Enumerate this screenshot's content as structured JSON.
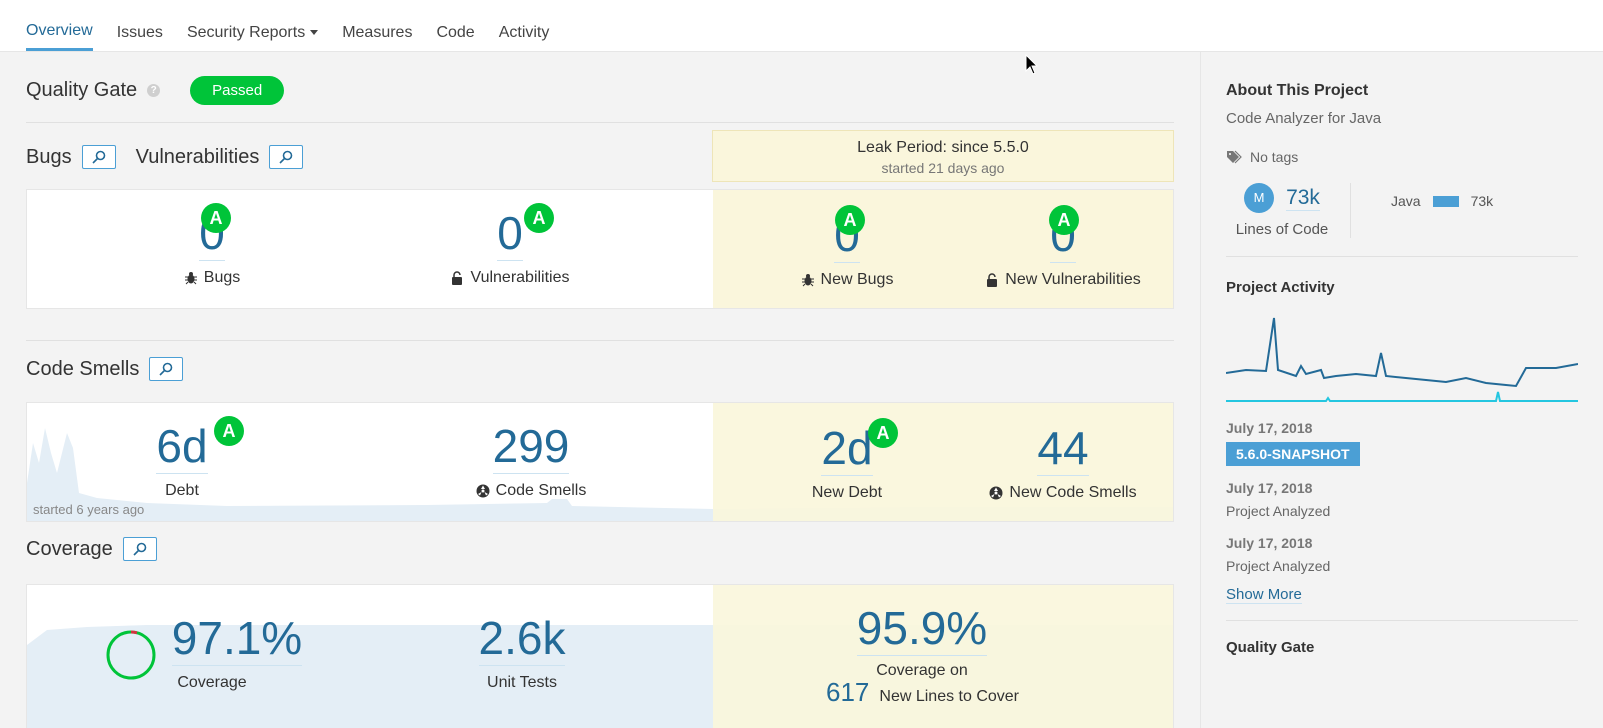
{
  "nav": {
    "tabs": [
      "Overview",
      "Issues",
      "Security Reports",
      "Measures",
      "Code",
      "Activity"
    ],
    "active": "Overview"
  },
  "quality_gate": {
    "title": "Quality Gate",
    "status": "Passed",
    "help": "?"
  },
  "sections": {
    "bugs_title": "Bugs",
    "vulns_title": "Vulnerabilities",
    "code_smells_title": "Code Smells",
    "coverage_title": "Coverage"
  },
  "leak_period": {
    "title": "Leak Period: since 5.5.0",
    "started": "started 21 days ago"
  },
  "bugs_vulns": {
    "bugs": {
      "value": "0",
      "label": "Bugs",
      "rating": "A"
    },
    "vulnerabilities": {
      "value": "0",
      "label": "Vulnerabilities",
      "rating": "A"
    },
    "new_bugs": {
      "value": "0",
      "label": "New Bugs",
      "rating": "A"
    },
    "new_vulnerabilities": {
      "value": "0",
      "label": "New Vulnerabilities",
      "rating": "A"
    }
  },
  "code_smells": {
    "debt": {
      "value": "6d",
      "label": "Debt",
      "rating": "A"
    },
    "code_smells": {
      "value": "299",
      "label": "Code Smells"
    },
    "new_debt": {
      "value": "2d",
      "label": "New Debt",
      "rating": "A"
    },
    "new_code_smells": {
      "value": "44",
      "label": "New Code Smells"
    },
    "history_note": "started 6 years ago"
  },
  "coverage": {
    "coverage": {
      "value": "97.1%",
      "label": "Coverage"
    },
    "unit_tests": {
      "value": "2.6k",
      "label": "Unit Tests"
    },
    "new_coverage": {
      "value": "95.9%",
      "label": "Coverage on"
    },
    "new_lines": {
      "value": "617",
      "label": "New Lines to Cover"
    }
  },
  "sidebar": {
    "about_title": "About This Project",
    "description": "Code Analyzer for Java",
    "tags": "No tags",
    "loc_avatar": "M",
    "loc_value": "73k",
    "loc_label": "Lines of Code",
    "language": {
      "name": "Java",
      "value": "73k"
    },
    "activity_title": "Project Activity",
    "events": [
      {
        "date": "July 17, 2018",
        "version": "5.6.0-SNAPSHOT"
      },
      {
        "date": "July 17, 2018",
        "text": "Project Analyzed"
      },
      {
        "date": "July 17, 2018",
        "text": "Project Analyzed"
      }
    ],
    "show_more": "Show More",
    "quality_gate_title": "Quality Gate"
  },
  "colors": {
    "accent": "#4b9fd5",
    "link": "#236a97",
    "rating_a": "#00c439",
    "leak_bg": "#faf6dc"
  }
}
